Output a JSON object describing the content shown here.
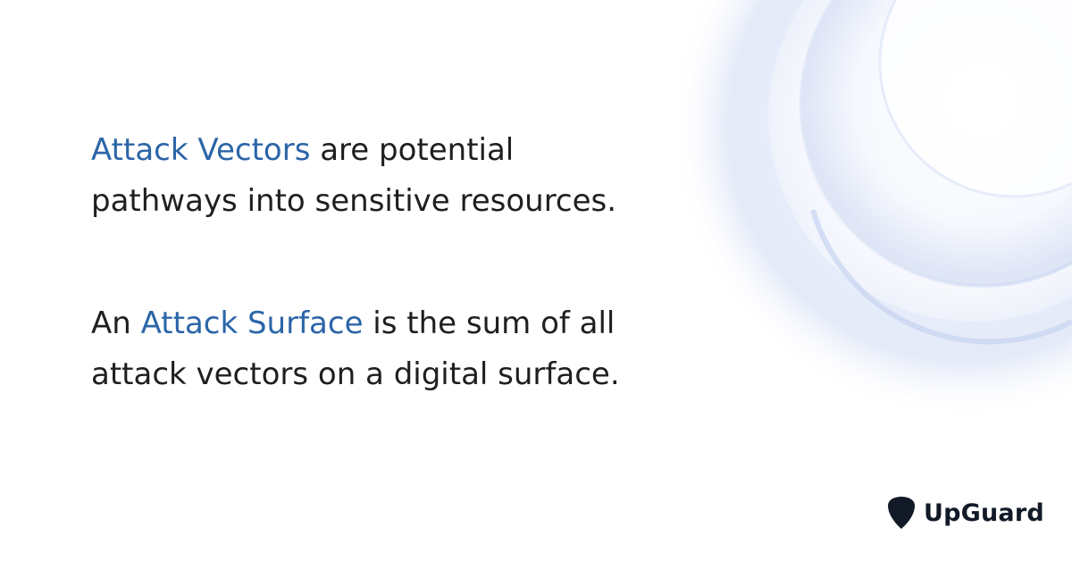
{
  "paragraph_1": {
    "highlight": "Attack Vectors",
    "text_line_1": " are potential",
    "text_line_2": "pathways into sensitive resources."
  },
  "paragraph_2": {
    "lead": "An ",
    "highlight": "Attack Surface",
    "text_line_1": " is the sum of all",
    "text_line_2": "attack vectors on a digital surface."
  },
  "brand": {
    "name": "UpGuard",
    "icon": "shield-icon"
  },
  "colors": {
    "body_text": "#1f1f1f",
    "highlight": "#2c65a8",
    "brand_text": "#121a28",
    "background": "#ffffff"
  }
}
